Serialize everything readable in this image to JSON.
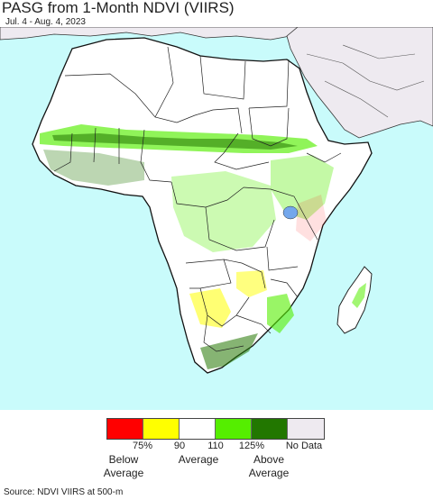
{
  "header": {
    "title": "PASG from 1-Month NDVI (VIIRS)",
    "subtitle": "Jul. 4 - Aug. 4, 2023"
  },
  "legend": {
    "swatches": [
      {
        "color": "#ff0000",
        "name": "below-average-strong"
      },
      {
        "color": "#ffff00",
        "name": "below-average"
      },
      {
        "color": "#ffffff",
        "name": "average"
      },
      {
        "color": "#55ee00",
        "name": "above-average"
      },
      {
        "color": "#227700",
        "name": "above-average-strong"
      },
      {
        "color": "#eeeaf0",
        "name": "no-data"
      }
    ],
    "ticks": [
      "75%",
      "90",
      "110",
      "125%",
      "No Data"
    ],
    "categories": [
      {
        "line1": "Below",
        "line2": "Average"
      },
      {
        "line1": "Average",
        "line2": ""
      },
      {
        "line1": "Above",
        "line2": "Average"
      }
    ]
  },
  "footer": {
    "source": "Source: NDVI VIIRS at 500-m"
  },
  "map": {
    "ocean_color": "#c9fbfb",
    "land_color": "#ffffff",
    "nodata_color": "#eeeaf0",
    "lake_color": "#74a7ec"
  }
}
